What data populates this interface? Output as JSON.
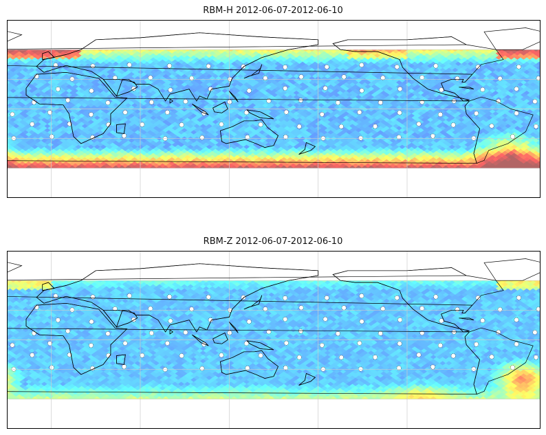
{
  "panels": [
    {
      "title": "RBM-H 2012-06-07-2012-06-10",
      "field": "rbm_h",
      "colormap": "jet",
      "alpha": 0.6
    },
    {
      "title": "RBM-Z 2012-06-07-2012-06-10",
      "field": "rbm_z",
      "colormap": "jet",
      "alpha": 0.6
    }
  ],
  "map": {
    "projection": "equirectangular",
    "central_longitude": 150,
    "lon_range": [
      -30,
      330
    ],
    "lat_range": [
      -90,
      90
    ],
    "data_lat_range": [
      -60,
      60
    ],
    "gridline_lons": [
      0,
      60,
      120,
      180,
      240
    ],
    "gridline_lats": [
      -60,
      -30,
      0,
      30,
      60
    ],
    "coastlines": true
  },
  "colors": {
    "ocean_low": "#5a5aff",
    "ocean_high": "#c8504e",
    "gridline": "#cccccc",
    "coastline": "#000000"
  }
}
